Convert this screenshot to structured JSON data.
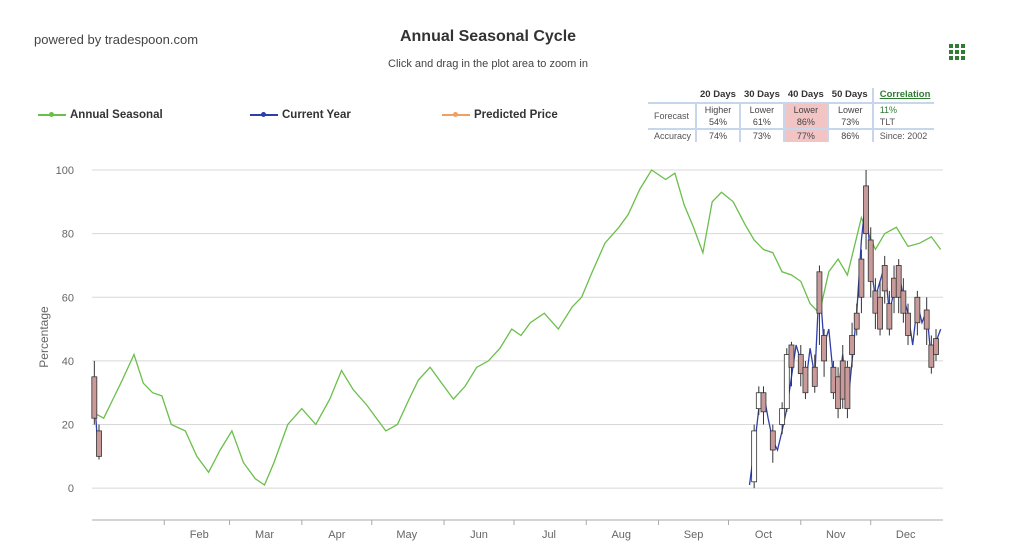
{
  "header": {
    "powered_by": "powered by tradespoon.com",
    "title": "Annual Seasonal Cycle",
    "subtitle": "Click and drag in the plot area to zoom in",
    "menu_icon": "grid-menu-icon"
  },
  "legend": [
    {
      "name": "Annual Seasonal",
      "color": "#6abf4b"
    },
    {
      "name": "Current Year",
      "color": "#2f3fa8"
    },
    {
      "name": "Predicted Price",
      "color": "#f0a060"
    }
  ],
  "stats": {
    "headers": [
      "20 Days",
      "30 Days",
      "40 Days",
      "50 Days"
    ],
    "forecast_label": "Forecast",
    "accuracy_label": "Accuracy",
    "forecast": [
      {
        "dir": "Higher",
        "pct": "54%"
      },
      {
        "dir": "Lower",
        "pct": "61%"
      },
      {
        "dir": "Lower",
        "pct": "86%"
      },
      {
        "dir": "Lower",
        "pct": "73%"
      }
    ],
    "accuracy": [
      "74%",
      "73%",
      "77%",
      "86%"
    ],
    "highlight_index": 2,
    "correlation_label": "Correlation",
    "correlation_value": "11%",
    "symbol": "TLT",
    "since": "Since: 2002"
  },
  "chart_data": {
    "type": "line",
    "ylabel": "Percentage",
    "ylim": [
      -10,
      100
    ],
    "yticks": [
      0,
      20,
      40,
      60,
      80,
      100
    ],
    "xlim": [
      0,
      365
    ],
    "months": [
      {
        "label": "Feb",
        "day": 31
      },
      {
        "label": "Mar",
        "day": 59
      },
      {
        "label": "Apr",
        "day": 90
      },
      {
        "label": "May",
        "day": 120
      },
      {
        "label": "Jun",
        "day": 151
      },
      {
        "label": "Jul",
        "day": 181
      },
      {
        "label": "Aug",
        "day": 212
      },
      {
        "label": "Sep",
        "day": 243
      },
      {
        "label": "Oct",
        "day": 273
      },
      {
        "label": "Nov",
        "day": 304
      },
      {
        "label": "Dec",
        "day": 334
      }
    ],
    "grid": true,
    "legend_position": "top-left",
    "series": [
      {
        "name": "Annual Seasonal",
        "color": "#6abf4b",
        "x": [
          0,
          5,
          9,
          13,
          18,
          22,
          26,
          30,
          34,
          40,
          45,
          50,
          55,
          60,
          65,
          70,
          74,
          78,
          84,
          90,
          96,
          102,
          107,
          112,
          118,
          122,
          126,
          131,
          136,
          140,
          145,
          150,
          155,
          160,
          165,
          170,
          175,
          180,
          184,
          188,
          194,
          200,
          206,
          210,
          214,
          220,
          226,
          230,
          235,
          240,
          246,
          250,
          254,
          258,
          262,
          266,
          270,
          275,
          280,
          284,
          288,
          292,
          296,
          300,
          304,
          308,
          312,
          316,
          320,
          324,
          330,
          336,
          340,
          345,
          350,
          355,
          360,
          364
        ],
        "y": [
          24,
          22,
          28,
          34,
          42,
          33,
          30,
          29,
          20,
          18,
          10,
          5,
          12,
          18,
          8,
          3,
          1,
          8,
          20,
          25,
          20,
          28,
          37,
          31,
          26,
          22,
          18,
          20,
          28,
          34,
          38,
          33,
          28,
          32,
          38,
          40,
          44,
          50,
          48,
          52,
          55,
          50,
          57,
          60,
          67,
          77,
          82,
          86,
          94,
          100,
          97,
          99,
          89,
          82,
          74,
          90,
          93,
          90,
          83,
          78,
          75,
          74,
          68,
          67,
          65,
          58,
          55,
          68,
          72,
          67,
          85,
          75,
          80,
          82,
          76,
          77,
          79,
          75
        ]
      },
      {
        "name": "Current Year",
        "color": "#2f3fa8",
        "x": [
          1,
          2,
          3,
          4,
          282,
          284,
          286,
          288,
          290,
          292,
          294,
          296,
          298,
          300,
          302,
          304,
          306,
          308,
          310,
          312,
          314,
          316,
          318,
          320,
          322,
          324,
          326,
          328,
          330,
          332,
          334,
          336,
          338,
          340,
          342,
          344,
          346,
          348,
          350,
          352,
          354,
          356,
          358,
          360,
          362,
          364
        ],
        "y": [
          30,
          18,
          12,
          14,
          1,
          12,
          25,
          30,
          22,
          15,
          12,
          18,
          25,
          35,
          45,
          40,
          32,
          44,
          35,
          65,
          45,
          50,
          35,
          30,
          42,
          25,
          40,
          55,
          78,
          92,
          70,
          60,
          65,
          70,
          55,
          62,
          68,
          60,
          55,
          45,
          58,
          52,
          56,
          40,
          46,
          50
        ]
      }
    ],
    "candles": [
      {
        "x": 1,
        "o": 35,
        "c": 22,
        "h": 40,
        "l": 20
      },
      {
        "x": 3,
        "o": 18,
        "c": 10,
        "h": 20,
        "l": 9
      },
      {
        "x": 284,
        "o": 2,
        "c": 18,
        "h": 20,
        "l": 0
      },
      {
        "x": 286,
        "o": 25,
        "c": 30,
        "h": 32,
        "l": 23
      },
      {
        "x": 288,
        "o": 30,
        "c": 24,
        "h": 32,
        "l": 20
      },
      {
        "x": 292,
        "o": 18,
        "c": 12,
        "h": 20,
        "l": 8
      },
      {
        "x": 296,
        "o": 20,
        "c": 25,
        "h": 27,
        "l": 17
      },
      {
        "x": 298,
        "o": 25,
        "c": 42,
        "h": 44,
        "l": 24
      },
      {
        "x": 300,
        "o": 45,
        "c": 38,
        "h": 46,
        "l": 32
      },
      {
        "x": 304,
        "o": 42,
        "c": 36,
        "h": 45,
        "l": 32
      },
      {
        "x": 306,
        "o": 38,
        "c": 30,
        "h": 40,
        "l": 28
      },
      {
        "x": 310,
        "o": 38,
        "c": 32,
        "h": 42,
        "l": 30
      },
      {
        "x": 312,
        "o": 68,
        "c": 55,
        "h": 70,
        "l": 45
      },
      {
        "x": 314,
        "o": 48,
        "c": 40,
        "h": 50,
        "l": 35
      },
      {
        "x": 318,
        "o": 38,
        "c": 30,
        "h": 40,
        "l": 28
      },
      {
        "x": 320,
        "o": 35,
        "c": 25,
        "h": 38,
        "l": 22
      },
      {
        "x": 322,
        "o": 40,
        "c": 28,
        "h": 45,
        "l": 25
      },
      {
        "x": 324,
        "o": 38,
        "c": 25,
        "h": 40,
        "l": 22
      },
      {
        "x": 326,
        "o": 48,
        "c": 42,
        "h": 52,
        "l": 38
      },
      {
        "x": 328,
        "o": 55,
        "c": 50,
        "h": 58,
        "l": 48
      },
      {
        "x": 330,
        "o": 72,
        "c": 60,
        "h": 75,
        "l": 55
      },
      {
        "x": 332,
        "o": 95,
        "c": 80,
        "h": 100,
        "l": 75
      },
      {
        "x": 334,
        "o": 78,
        "c": 65,
        "h": 82,
        "l": 60
      },
      {
        "x": 336,
        "o": 62,
        "c": 55,
        "h": 66,
        "l": 50
      },
      {
        "x": 338,
        "o": 60,
        "c": 50,
        "h": 65,
        "l": 48
      },
      {
        "x": 340,
        "o": 70,
        "c": 62,
        "h": 73,
        "l": 58
      },
      {
        "x": 342,
        "o": 58,
        "c": 50,
        "h": 62,
        "l": 48
      },
      {
        "x": 344,
        "o": 66,
        "c": 60,
        "h": 70,
        "l": 55
      },
      {
        "x": 346,
        "o": 70,
        "c": 60,
        "h": 72,
        "l": 55
      },
      {
        "x": 348,
        "o": 62,
        "c": 55,
        "h": 66,
        "l": 52
      },
      {
        "x": 350,
        "o": 55,
        "c": 48,
        "h": 58,
        "l": 45
      },
      {
        "x": 354,
        "o": 60,
        "c": 52,
        "h": 62,
        "l": 48
      },
      {
        "x": 358,
        "o": 56,
        "c": 50,
        "h": 60,
        "l": 45
      },
      {
        "x": 360,
        "o": 45,
        "c": 38,
        "h": 48,
        "l": 36
      },
      {
        "x": 362,
        "o": 47,
        "c": 42,
        "h": 50,
        "l": 40
      }
    ]
  }
}
